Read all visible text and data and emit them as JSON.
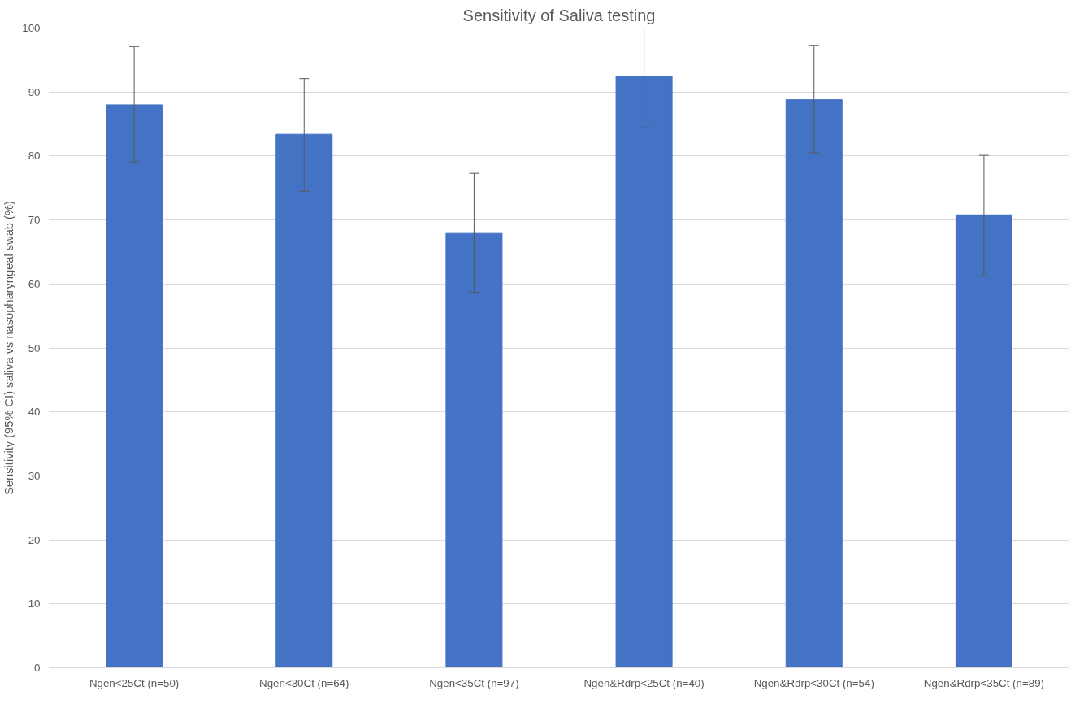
{
  "chart_data": {
    "type": "bar",
    "title": "Sensitivity of Saliva testing",
    "ylabel": "Sensitivity (95% CI) saliva vs nasopharyngeal swab (%)",
    "categories": [
      "Ngen<25Ct (n=50)",
      "Ngen<30Ct (n=64)",
      "Ngen<35Ct (n=97)",
      "Ngen&Rdrp<25Ct (n=40)",
      "Ngen&Rdrp<30Ct (n=54)",
      "Ngen&Rdrp<35Ct (n=89)"
    ],
    "values": [
      88,
      83.4,
      67.9,
      92.5,
      88.8,
      70.8
    ],
    "errors": [
      [
        79.1,
        97.1
      ],
      [
        74.5,
        92.1
      ],
      [
        58.7,
        77.3
      ],
      [
        84.4,
        100
      ],
      [
        80.5,
        97.3
      ],
      [
        61.3,
        80.1
      ]
    ],
    "color": "#4472c4",
    "ylim": [
      0,
      100
    ],
    "yticks": [
      0,
      10,
      20,
      30,
      40,
      50,
      60,
      70,
      80,
      90,
      100
    ],
    "grid": "y"
  }
}
